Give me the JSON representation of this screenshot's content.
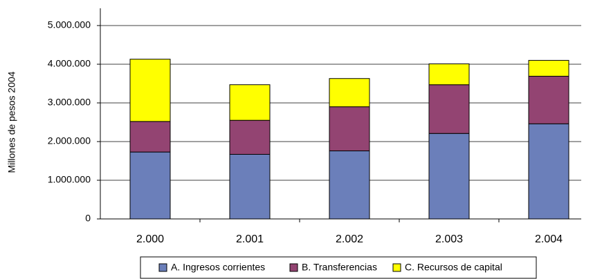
{
  "chart_data": {
    "type": "stacked-bar",
    "y_label": "Millones de pesos 2004",
    "categories": [
      "2.000",
      "2.001",
      "2.002",
      "2.003",
      "2.004"
    ],
    "series": [
      {
        "name": "A. Ingresos corrientes",
        "color": "#6b7fba",
        "values": [
          1730000,
          1670000,
          1760000,
          2210000,
          2460000
        ]
      },
      {
        "name": "B. Transferencias",
        "color": "#934472",
        "values": [
          790000,
          880000,
          1140000,
          1260000,
          1230000
        ]
      },
      {
        "name": "C. Recursos de capital",
        "color": "#ffff00",
        "values": [
          1610000,
          920000,
          730000,
          540000,
          410000
        ]
      }
    ],
    "ylim": [
      0,
      5000000
    ],
    "yticks": [
      0,
      {
        "value": 1000000,
        "label": "1.000.000"
      },
      {
        "value": 2000000,
        "label": "2.000.000"
      },
      {
        "value": 3000000,
        "label": "3.000.000"
      },
      {
        "value": 4000000,
        "label": "4.000.000"
      },
      {
        "value": 5000000,
        "label": "5.000.000"
      }
    ],
    "grid": true,
    "legend": "bottom"
  }
}
